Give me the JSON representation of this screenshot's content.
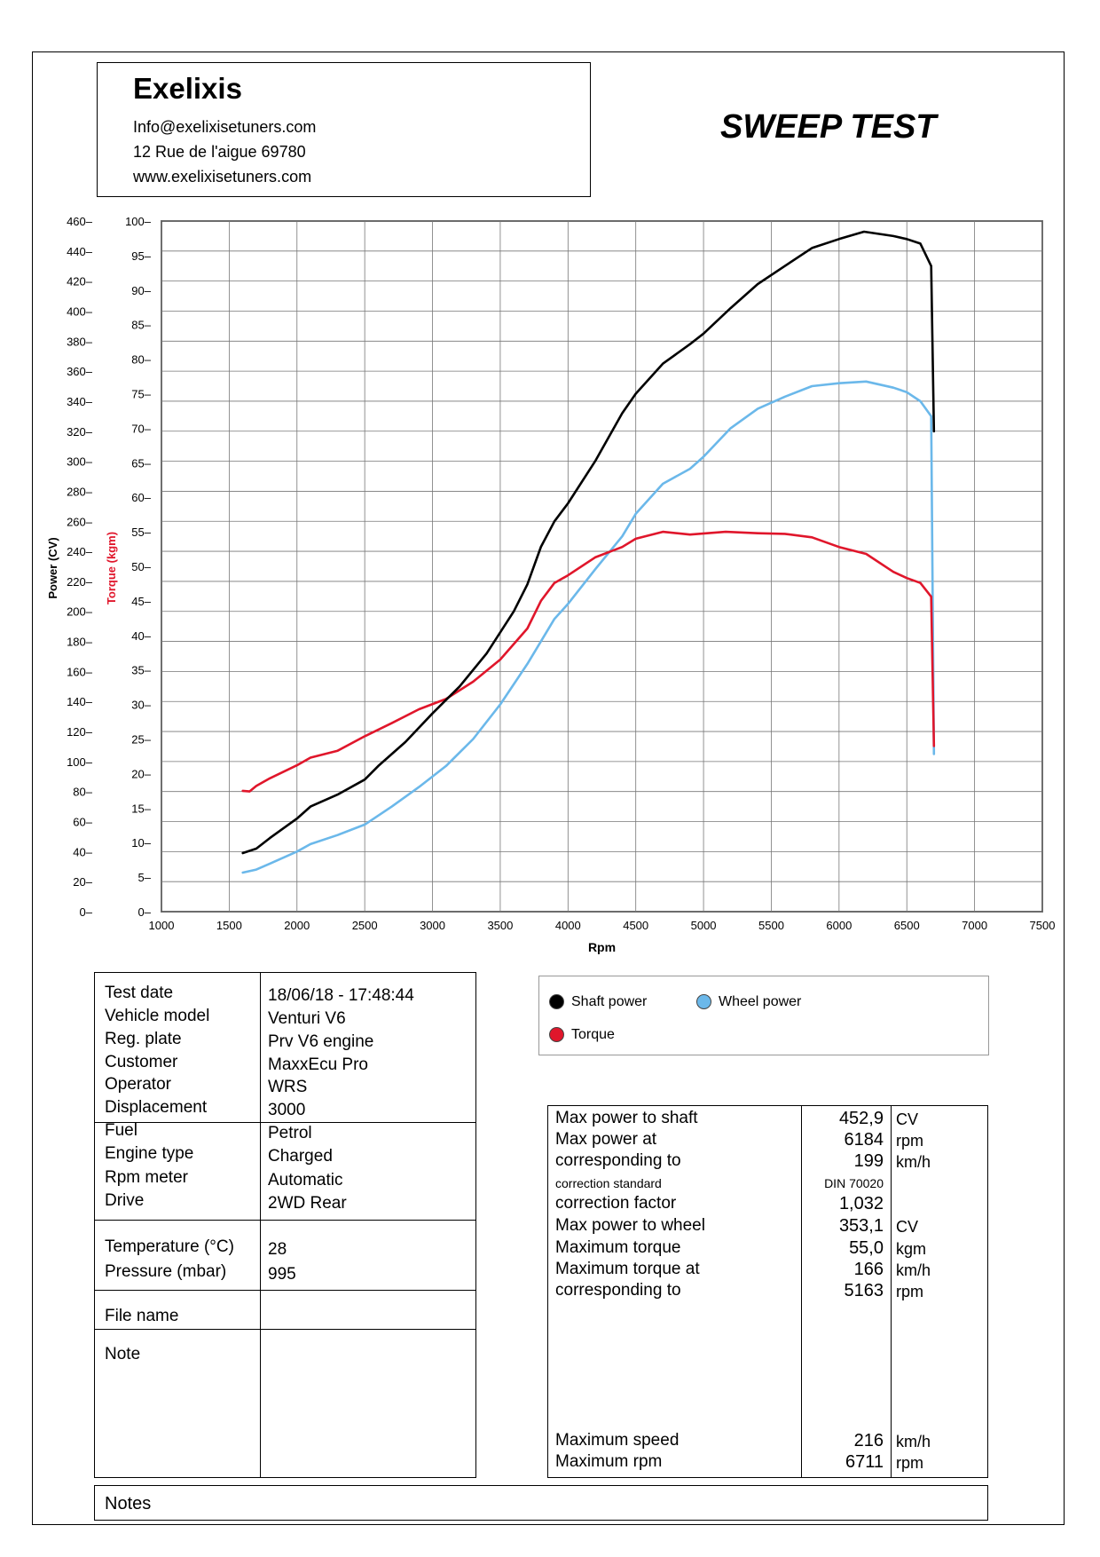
{
  "header": {
    "company": "Exelixis",
    "email": "Info@exelixisetuners.com",
    "address": "12 Rue de l'aigue 69780",
    "website": "www.exelixisetuners.com",
    "title": "SWEEP TEST"
  },
  "colors": {
    "shaft": "#000000",
    "wheel": "#6bb8ea",
    "torque": "#e0162b"
  },
  "chart_data": {
    "type": "line",
    "xlabel": "Rpm",
    "ylabel_power": "Power (CV)",
    "ylabel_torque": "Torque (kgm)",
    "xlim": [
      1000,
      7500
    ],
    "power_lim": [
      0,
      460
    ],
    "torque_lim": [
      0,
      100
    ],
    "x_ticks": [
      1000,
      1500,
      2000,
      2500,
      3000,
      3500,
      4000,
      4500,
      5000,
      5500,
      6000,
      6500,
      7000,
      7500
    ],
    "power_ticks": [
      0,
      20,
      40,
      60,
      80,
      100,
      120,
      140,
      160,
      180,
      200,
      220,
      240,
      260,
      280,
      300,
      320,
      340,
      360,
      380,
      400,
      420,
      440,
      460
    ],
    "torque_ticks": [
      0,
      5,
      10,
      15,
      20,
      25,
      30,
      35,
      40,
      45,
      50,
      55,
      60,
      65,
      70,
      75,
      80,
      85,
      90,
      95,
      100
    ],
    "grid": true,
    "series": [
      {
        "name": "Shaft power",
        "axis": "power",
        "x": [
          1600,
          1700,
          1800,
          2000,
          2100,
          2300,
          2500,
          2600,
          2800,
          3000,
          3200,
          3400,
          3600,
          3700,
          3800,
          3900,
          4000,
          4200,
          4400,
          4500,
          4700,
          4900,
          5000,
          5200,
          5400,
          5600,
          5800,
          6000,
          6184,
          6400,
          6500,
          6600,
          6680,
          6700
        ],
        "y": [
          39,
          42,
          49,
          62,
          70,
          78,
          88,
          97,
          113,
          132,
          150,
          172,
          200,
          218,
          243,
          260,
          272,
          300,
          332,
          345,
          365,
          378,
          385,
          402,
          418,
          430,
          442,
          448,
          452.9,
          450,
          448,
          445,
          430,
          320
        ]
      },
      {
        "name": "Wheel power",
        "axis": "power",
        "x": [
          1600,
          1700,
          1800,
          2000,
          2100,
          2300,
          2500,
          2700,
          2900,
          3100,
          3300,
          3500,
          3700,
          3900,
          4000,
          4200,
          4400,
          4500,
          4700,
          4900,
          5000,
          5200,
          5400,
          5600,
          5800,
          6000,
          6200,
          6400,
          6500,
          6600,
          6680,
          6700
        ],
        "y": [
          26,
          28,
          32,
          40,
          45,
          51,
          58,
          70,
          83,
          97,
          115,
          138,
          165,
          195,
          205,
          228,
          250,
          265,
          285,
          295,
          303,
          322,
          335,
          343,
          350,
          352,
          353.1,
          349,
          346,
          340,
          330,
          105
        ]
      },
      {
        "name": "Torque",
        "axis": "torque",
        "x": [
          1600,
          1650,
          1700,
          1800,
          2000,
          2100,
          2300,
          2500,
          2700,
          2900,
          3100,
          3300,
          3500,
          3700,
          3800,
          3900,
          4000,
          4200,
          4400,
          4500,
          4700,
          4900,
          5163,
          5400,
          5600,
          5800,
          6000,
          6200,
          6400,
          6500,
          6600,
          6680,
          6700
        ],
        "y": [
          17.5,
          17.4,
          18.2,
          19.3,
          21.2,
          22.3,
          23.3,
          25.4,
          27.3,
          29.3,
          30.8,
          33.3,
          36.5,
          41,
          45,
          47.6,
          48.7,
          51.3,
          52.8,
          54.0,
          55.0,
          54.6,
          55.0,
          54.8,
          54.7,
          54.2,
          52.8,
          51.8,
          49.2,
          48.3,
          47.6,
          45.6,
          24
        ]
      }
    ]
  },
  "info": {
    "rows": [
      {
        "label": "Test date",
        "value": "18/06/18 - 17:48:44"
      },
      {
        "label": "Vehicle model",
        "value": "Venturi V6"
      },
      {
        "label": "Reg. plate",
        "value": "Prv V6 engine"
      },
      {
        "label": "Customer",
        "value": "MaxxEcu Pro"
      },
      {
        "label": "Operator",
        "value": "WRS"
      },
      {
        "label": "Displacement",
        "value": "3000"
      },
      {
        "label": "Fuel",
        "value": "Petrol"
      },
      {
        "label": "Engine type",
        "value": "Charged"
      },
      {
        "label": "Rpm meter",
        "value": "Automatic"
      },
      {
        "label": "Drive",
        "value": "2WD Rear"
      },
      {
        "label": "Temperature (°C)",
        "value": "28"
      },
      {
        "label": "Pressure (mbar)",
        "value": "995"
      },
      {
        "label": "File name",
        "value": ""
      },
      {
        "label": "Note",
        "value": ""
      }
    ]
  },
  "legend": {
    "shaft": "Shaft power",
    "wheel": "Wheel power",
    "torque": "Torque"
  },
  "results": {
    "rows": [
      {
        "label": "Max power to shaft",
        "value": "452,9",
        "unit": "CV"
      },
      {
        "label": "Max power at",
        "value": "6184",
        "unit": "rpm"
      },
      {
        "label": "corresponding to",
        "value": "199",
        "unit": "km/h"
      },
      {
        "label": "correction standard",
        "value": "DIN 70020",
        "unit": ""
      },
      {
        "label": "correction factor",
        "value": "1,032",
        "unit": ""
      },
      {
        "label": "Max power to wheel",
        "value": "353,1",
        "unit": "CV"
      },
      {
        "label": "Maximum torque",
        "value": "55,0",
        "unit": "kgm"
      },
      {
        "label": "Maximum torque at",
        "value": "166",
        "unit": "km/h"
      },
      {
        "label": "corresponding to",
        "value": "5163",
        "unit": "rpm"
      },
      {
        "label": "Maximum speed",
        "value": "216",
        "unit": "km/h"
      },
      {
        "label": "Maximum rpm",
        "value": "6711",
        "unit": "rpm"
      }
    ]
  },
  "notes_label": "Notes"
}
